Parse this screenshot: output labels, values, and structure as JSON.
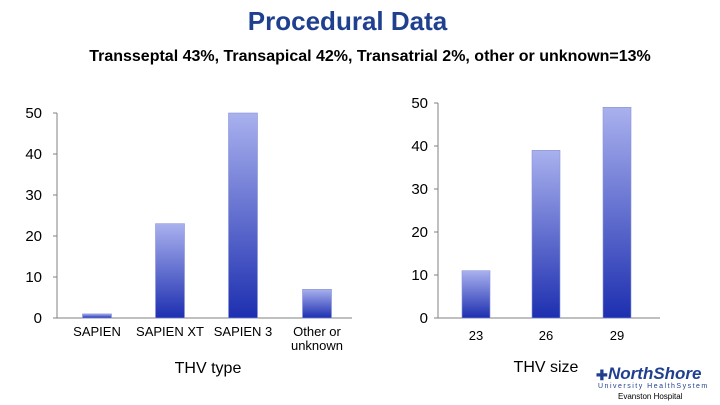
{
  "title": "Procedural Data",
  "subtitle": "Transseptal 43%, Transapical 42%, Transatrial 2%, other or unknown=13%",
  "logo": {
    "brand": "NorthShore",
    "sub": "University HealthSystem",
    "hospital": "Evanston Hospital"
  },
  "colors": {
    "bar_top": "#a9b1ee",
    "bar_bottom": "#1d2fb0",
    "axis": "#808080",
    "title": "#1f3f8f"
  },
  "chart_data": [
    {
      "type": "bar",
      "xlabel": "THV type",
      "categories": [
        "SAPIEN",
        "SAPIEN XT",
        "SAPIEN 3",
        "Other or unknown"
      ],
      "category_lines": [
        [
          "SAPIEN"
        ],
        [
          "SAPIEN XT"
        ],
        [
          "SAPIEN 3"
        ],
        [
          "Other or",
          "unknown"
        ]
      ],
      "values": [
        1,
        23,
        50,
        7
      ],
      "ylim": [
        0,
        50
      ],
      "yticks": [
        0,
        10,
        20,
        30,
        40,
        50
      ]
    },
    {
      "type": "bar",
      "xlabel": "THV size",
      "categories": [
        "23",
        "26",
        "29"
      ],
      "category_lines": [
        [
          "23"
        ],
        [
          "26"
        ],
        [
          "29"
        ]
      ],
      "values": [
        11,
        39,
        49
      ],
      "ylim": [
        0,
        50
      ],
      "yticks": [
        0,
        10,
        20,
        30,
        40,
        50
      ]
    }
  ]
}
